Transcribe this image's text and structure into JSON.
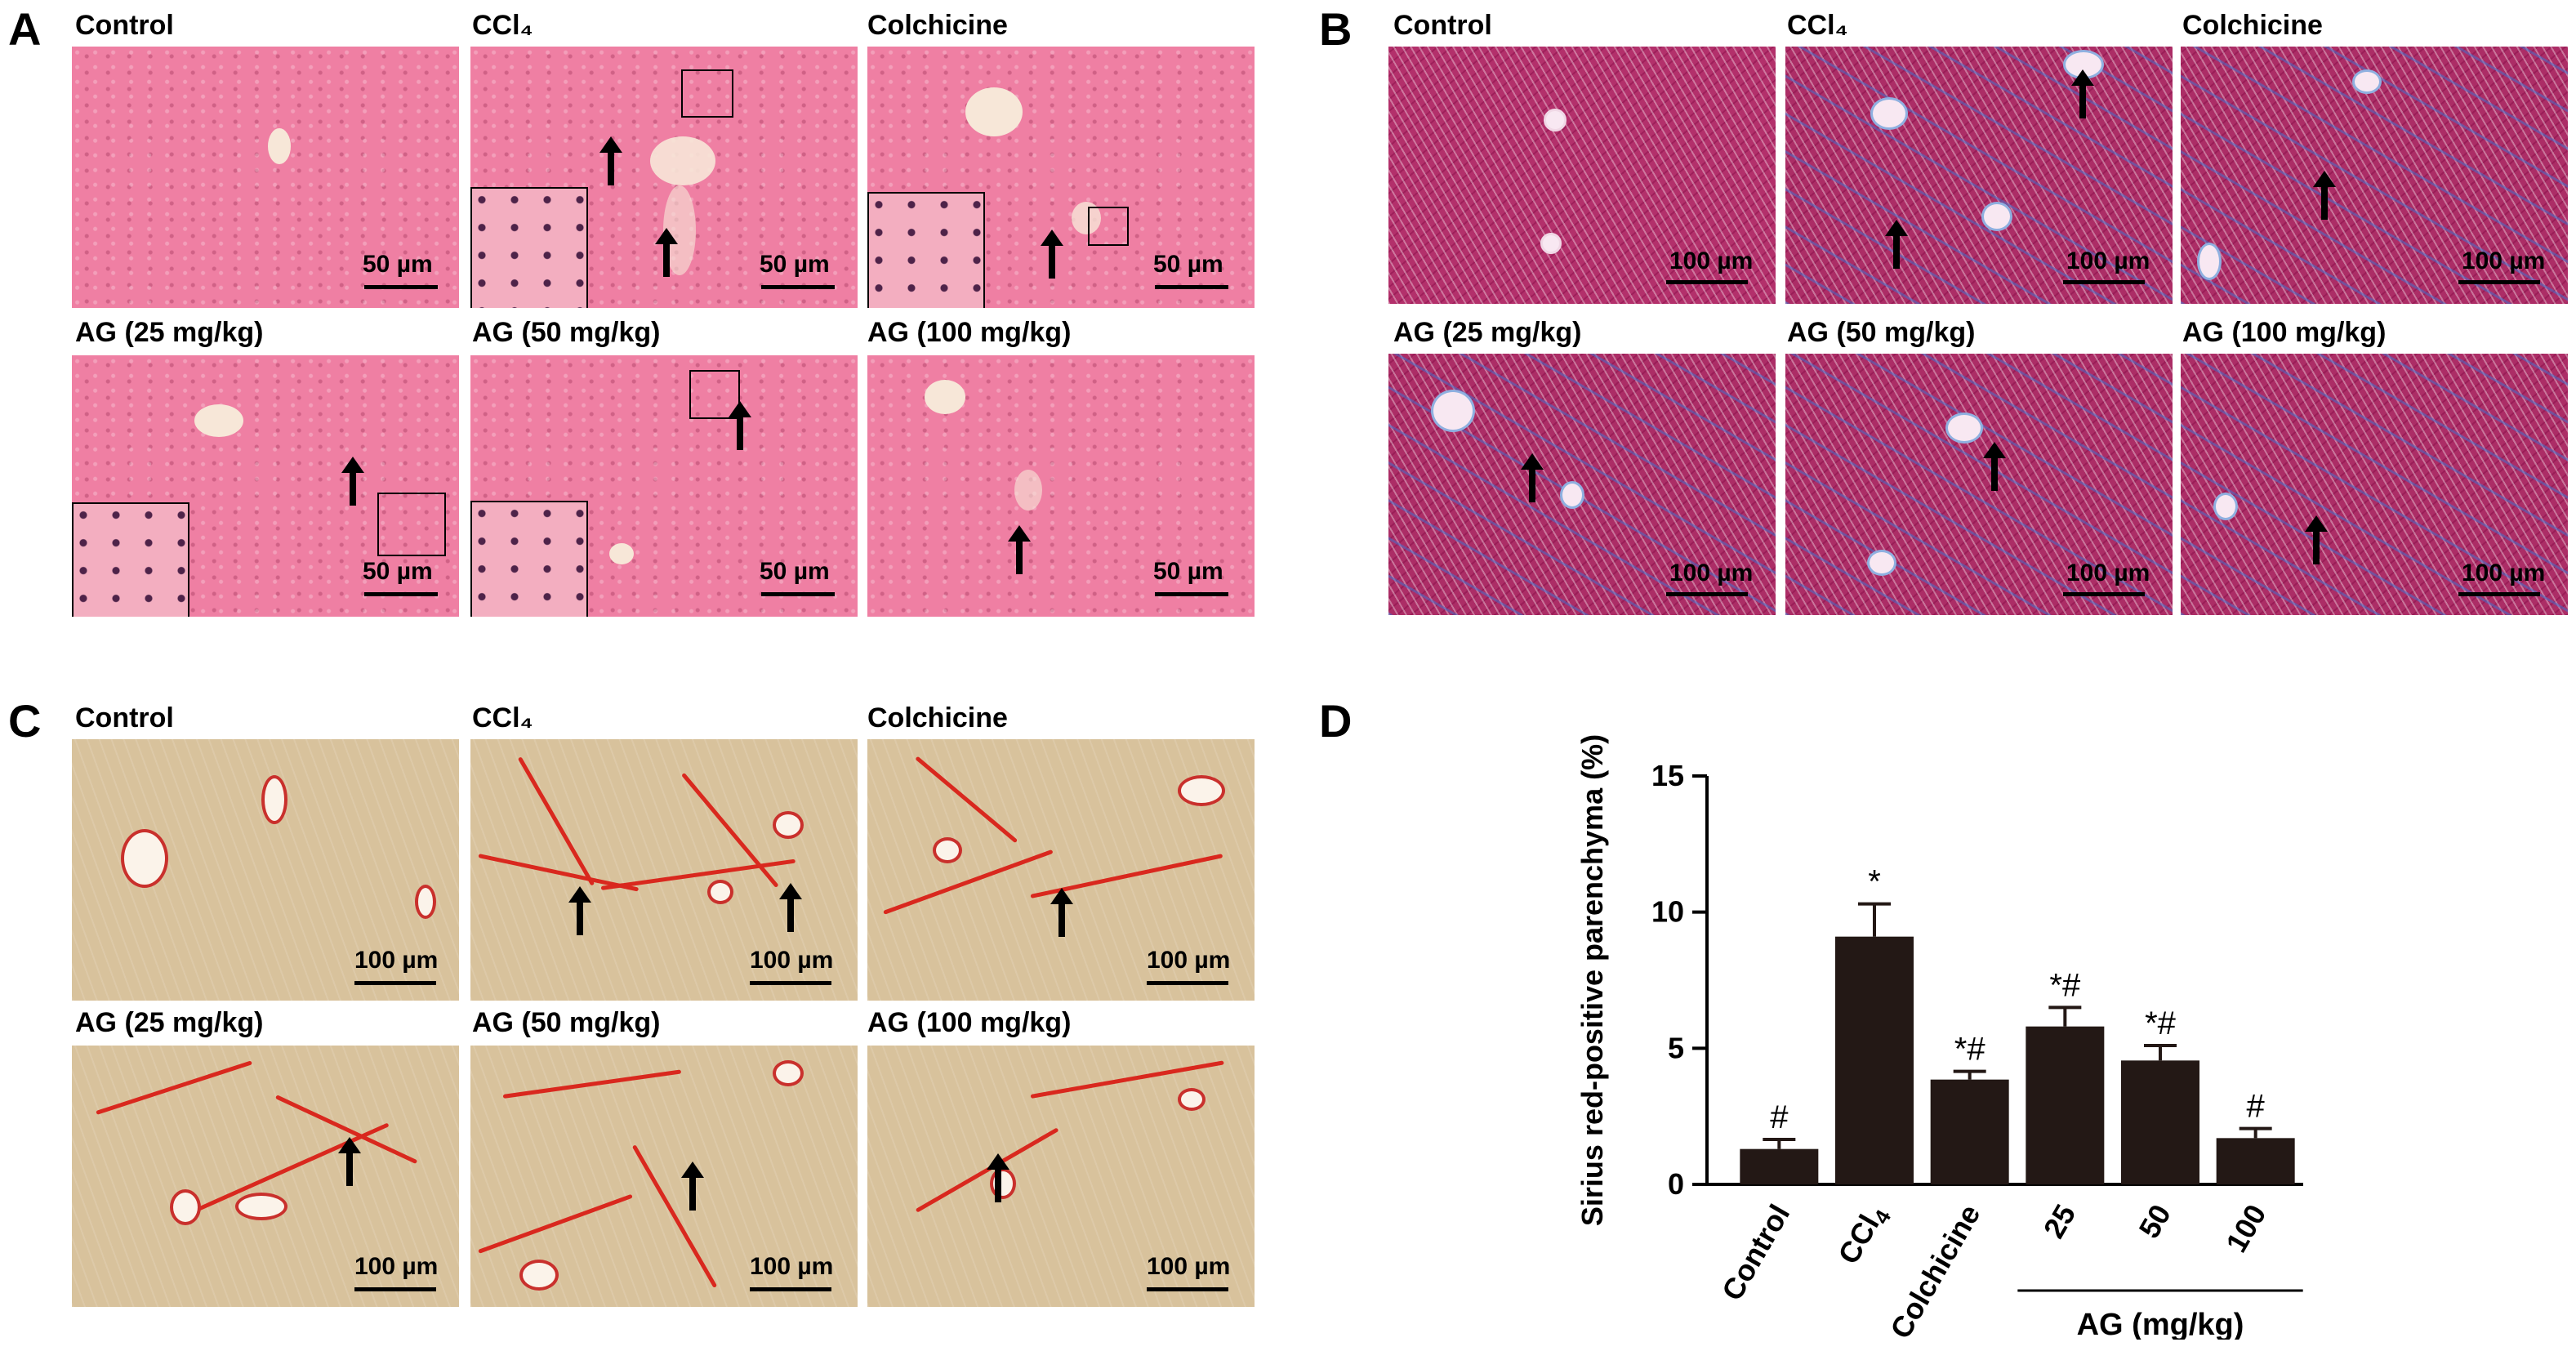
{
  "panels": {
    "A": {
      "letter": "A",
      "titles": [
        "Control",
        "CCl₄",
        "Colchicine",
        "AG (25 mg/kg)",
        "AG (50 mg/kg)",
        "AG (100 mg/kg)"
      ],
      "scale": "50 µm"
    },
    "B": {
      "letter": "B",
      "titles": [
        "Control",
        "CCl₄",
        "Colchicine",
        "AG (25 mg/kg)",
        "AG (50 mg/kg)",
        "AG (100 mg/kg)"
      ],
      "scale": "100 µm"
    },
    "C": {
      "letter": "C",
      "titles": [
        "Control",
        "CCl₄",
        "Colchicine",
        "AG (25 mg/kg)",
        "AG (50 mg/kg)",
        "AG (100 mg/kg)"
      ],
      "scale": "100 µm"
    },
    "D": {
      "letter": "D"
    }
  },
  "colors": {
    "he_stain": "#ef7fa3",
    "masson_stain": "#b3306b",
    "sirius_background": "#d8c29c",
    "sirius_collagen": "#d9281e",
    "bar_fill": "#231815"
  },
  "chart_data": {
    "type": "bar",
    "categories": [
      "Control",
      "CCl₄",
      "Colchicine",
      "25",
      "50",
      "100"
    ],
    "values": [
      1.3,
      9.1,
      3.85,
      5.8,
      4.55,
      1.7
    ],
    "errors": [
      0.35,
      1.2,
      0.3,
      0.7,
      0.55,
      0.35
    ],
    "annotations": [
      "#",
      "*",
      "*#",
      "*#",
      "*#",
      "#"
    ],
    "ylabel": "Sirius red-positive parenchyma (%)",
    "ylim": [
      0,
      15
    ],
    "yticks": [
      0,
      5,
      10,
      15
    ],
    "group_label": "AG (mg/kg)",
    "group_categories": [
      "25",
      "50",
      "100"
    ],
    "grid": false
  }
}
